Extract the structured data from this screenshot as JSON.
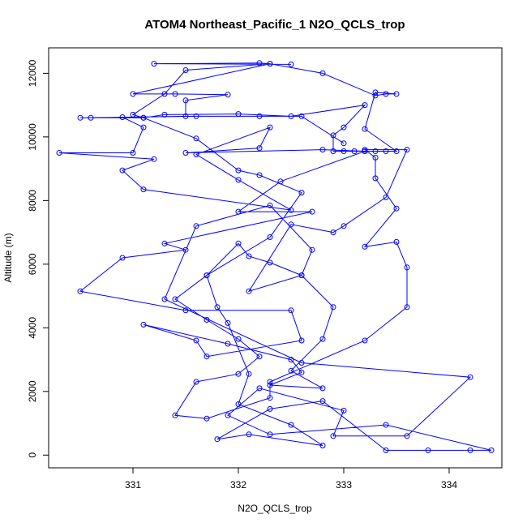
{
  "chart_data": {
    "type": "scatter",
    "title": "ATOM4 Northeast_Pacific_1 N2O_QCLS_trop",
    "xlabel": "N2O_QCLS_trop",
    "ylabel": "Altitude (m)",
    "xlim": [
      330.2,
      334.5
    ],
    "ylim": [
      -400,
      12800
    ],
    "xticks": [
      331,
      332,
      333,
      334
    ],
    "yticks": [
      0,
      2000,
      4000,
      6000,
      8000,
      10000,
      12000
    ],
    "grid": false,
    "color": "#0000ff",
    "series": [
      {
        "points": [
          [
            332.5,
            12280
          ],
          [
            331.2,
            12300
          ],
          [
            332.2,
            12320
          ],
          [
            332.3,
            12300
          ],
          [
            331.0,
            11350
          ],
          [
            331.4,
            11350
          ],
          [
            331.9,
            11330
          ],
          [
            331.5,
            11150
          ],
          [
            331.5,
            10650
          ],
          [
            330.6,
            10600
          ],
          [
            330.9,
            10620
          ],
          [
            331.1,
            10300
          ],
          [
            331.0,
            9500
          ],
          [
            330.3,
            9500
          ],
          [
            331.2,
            9300
          ],
          [
            330.9,
            8950
          ],
          [
            331.1,
            8350
          ],
          [
            332.5,
            7700
          ],
          [
            332.0,
            8650
          ],
          [
            331.6,
            9450
          ],
          [
            332.3,
            10300
          ],
          [
            332.2,
            9650
          ],
          [
            331.5,
            9500
          ],
          [
            332.8,
            9600
          ],
          [
            333.2,
            9550
          ],
          [
            332.4,
            8600
          ],
          [
            332.0,
            7650
          ],
          [
            332.7,
            7650
          ],
          [
            331.3,
            6650
          ],
          [
            331.5,
            6450
          ],
          [
            330.9,
            6200
          ],
          [
            330.5,
            5150
          ],
          [
            331.5,
            4550
          ],
          [
            332.5,
            4550
          ],
          [
            332.6,
            3600
          ],
          [
            331.7,
            3100
          ],
          [
            331.6,
            3600
          ],
          [
            331.1,
            4100
          ],
          [
            331.9,
            3500
          ],
          [
            332.5,
            3000
          ],
          [
            332.6,
            2600
          ],
          [
            332.3,
            2200
          ],
          [
            332.8,
            2100
          ],
          [
            332.5,
            2650
          ],
          [
            332.8,
            3650
          ],
          [
            332.9,
            4650
          ],
          [
            332.6,
            5650
          ],
          [
            332.3,
            6050
          ],
          [
            332.1,
            6250
          ],
          [
            332.0,
            6650
          ],
          [
            331.7,
            5650
          ],
          [
            331.8,
            4650
          ],
          [
            331.9,
            4150
          ],
          [
            332.1,
            2550
          ],
          [
            332.0,
            1600
          ],
          [
            332.5,
            950
          ],
          [
            332.8,
            300
          ],
          [
            332.1,
            650
          ],
          [
            331.8,
            500
          ],
          [
            332.3,
            1450
          ],
          [
            332.8,
            1700
          ],
          [
            333.4,
            150
          ],
          [
            333.8,
            150
          ],
          [
            334.2,
            150
          ],
          [
            334.4,
            150
          ],
          [
            333.4,
            950
          ],
          [
            332.3,
            650
          ],
          [
            331.9,
            1250
          ],
          [
            332.2,
            2100
          ],
          [
            333.0,
            1400
          ],
          [
            332.9,
            600
          ],
          [
            333.6,
            600
          ],
          [
            334.2,
            2450
          ],
          [
            332.6,
            2900
          ],
          [
            331.3,
            4900
          ],
          [
            331.6,
            7200
          ],
          [
            332.3,
            7850
          ],
          [
            332.7,
            6450
          ],
          [
            332.6,
            5650
          ],
          [
            332.1,
            5150
          ],
          [
            332.5,
            7250
          ],
          [
            332.9,
            7000
          ],
          [
            333.0,
            7200
          ],
          [
            333.4,
            8100
          ],
          [
            333.6,
            9600
          ],
          [
            333.2,
            9600
          ],
          [
            333.3,
            9350
          ],
          [
            333.3,
            8700
          ],
          [
            333.5,
            7750
          ],
          [
            333.2,
            6550
          ],
          [
            333.5,
            6700
          ],
          [
            333.6,
            5900
          ],
          [
            333.6,
            4650
          ],
          [
            333.2,
            3600
          ],
          [
            332.3,
            2300
          ],
          [
            332.3,
            1800
          ],
          [
            331.7,
            1150
          ],
          [
            331.4,
            1250
          ],
          [
            331.6,
            2300
          ],
          [
            332.0,
            2550
          ],
          [
            332.2,
            3100
          ],
          [
            332.0,
            3650
          ],
          [
            331.7,
            4250
          ],
          [
            331.4,
            4900
          ],
          [
            331.7,
            5650
          ],
          [
            332.3,
            6850
          ],
          [
            332.6,
            8250
          ],
          [
            332.2,
            8800
          ],
          [
            332.0,
            8950
          ],
          [
            331.6,
            9950
          ],
          [
            331.1,
            10600
          ],
          [
            331.3,
            10700
          ],
          [
            332.0,
            10720
          ],
          [
            332.5,
            10650
          ],
          [
            333.2,
            11000
          ],
          [
            333.0,
            10300
          ],
          [
            332.9,
            10050
          ],
          [
            332.9,
            9550
          ],
          [
            333.0,
            9550
          ],
          [
            333.3,
            9550
          ],
          [
            333.1,
            9550
          ],
          [
            333.2,
            9550
          ],
          [
            333.4,
            9550
          ],
          [
            333.5,
            9550
          ],
          [
            333.2,
            10250
          ],
          [
            333.3,
            11400
          ],
          [
            333.5,
            11350
          ],
          [
            333.4,
            11350
          ],
          [
            333.3,
            11300
          ],
          [
            332.8,
            12000
          ],
          [
            332.3,
            12300
          ],
          [
            331.5,
            12100
          ],
          [
            331.3,
            11350
          ],
          [
            331.0,
            10700
          ],
          [
            331.1,
            10600
          ],
          [
            330.5,
            10600
          ],
          [
            331.6,
            10650
          ],
          [
            332.2,
            10650
          ],
          [
            332.6,
            10650
          ],
          [
            333.0,
            9800
          ]
        ]
      }
    ]
  }
}
